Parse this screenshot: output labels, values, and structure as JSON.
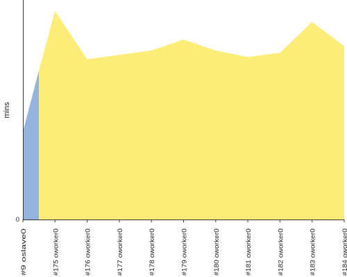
{
  "chart_data": {
    "type": "area",
    "ylabel": "mins",
    "yticks": [
      "0"
    ],
    "ylim": [
      0,
      100
    ],
    "categories": [
      "#9 oslave0",
      "#175 oworker0",
      "#176 oworker0",
      "#177 oworker0",
      "#178 oworker0",
      "#179 oworker0",
      "#180 oworker0",
      "#181 oworker0",
      "#182 oworker0",
      "#183 oworker0",
      "#184 oworker0"
    ],
    "x_positions": [
      0,
      0.5,
      1,
      2,
      3,
      4,
      5,
      6,
      7,
      8,
      9,
      10
    ],
    "series": [
      {
        "color": "#94b4de",
        "x": [
          0,
          0.5
        ],
        "values": [
          40,
          68
        ]
      },
      {
        "color": "#fcec78",
        "x": [
          0.5,
          1,
          2,
          3,
          4,
          5,
          6,
          7,
          8,
          9,
          10
        ],
        "values": [
          68,
          95,
          73,
          75,
          77,
          82,
          77,
          74,
          76,
          90,
          79
        ]
      }
    ],
    "grid": false,
    "legend": "none"
  }
}
